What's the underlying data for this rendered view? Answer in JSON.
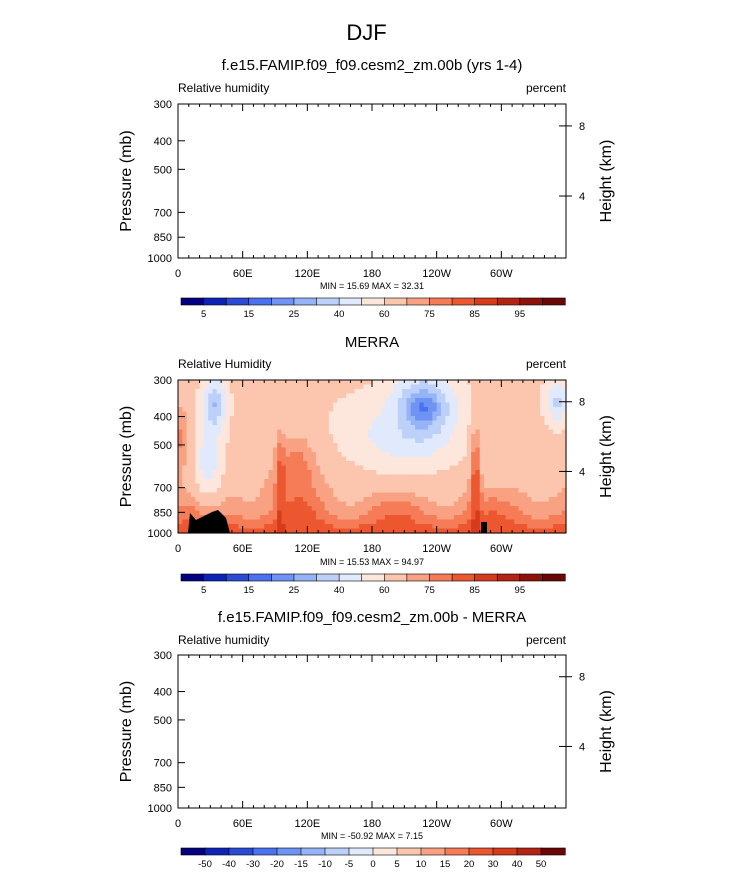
{
  "page": {
    "title": "DJF"
  },
  "colors": {
    "bar_rh": [
      "#04007f",
      "#0b24b6",
      "#2b4ad6",
      "#4a72f0",
      "#6f93f5",
      "#95b3f7",
      "#bcd0f9",
      "#e0eafc",
      "#fde7dc",
      "#fbc6ad",
      "#f9a283",
      "#f57c57",
      "#ec5730",
      "#d53b1c",
      "#b32413",
      "#8e120c",
      "#690606"
    ],
    "topo": "#000000"
  },
  "chart_data": [
    {
      "type": "heatmap",
      "title": "f.e15.FAMIP.f09_f09.cesm2_zm.00b (yrs 1-4)",
      "left_label": "Relative humidity",
      "right_label": "percent",
      "ylabel": "Pressure (mb)",
      "ylabel_right": "Height (km)",
      "y_ticks": [
        "300",
        "400",
        "500",
        "700",
        "850",
        "1000"
      ],
      "y_right_ticks": [
        "8",
        "4"
      ],
      "x_ticks": [
        "0",
        "60E",
        "120E",
        "180",
        "120W",
        "60W"
      ],
      "stats": "MIN = 15.69  MAX = 32.31",
      "colorbar_labels": [
        "5",
        "15",
        "25",
        "40",
        "60",
        "75",
        "85",
        "95"
      ],
      "filled": false
    },
    {
      "type": "heatmap",
      "title": "MERRA",
      "left_label": "Relative Humidity",
      "right_label": "percent",
      "ylabel": "Pressure (mb)",
      "ylabel_right": "Height (km)",
      "y_ticks": [
        "300",
        "400",
        "500",
        "700",
        "850",
        "1000"
      ],
      "y_right_ticks": [
        "8",
        "4"
      ],
      "x_ticks": [
        "0",
        "60E",
        "120E",
        "180",
        "120W",
        "60W"
      ],
      "stats": "MIN = 15.53  MAX = 94.97",
      "colorbar_labels": [
        "5",
        "15",
        "25",
        "40",
        "60",
        "75",
        "85",
        "95"
      ],
      "filled": true
    },
    {
      "type": "heatmap",
      "title": "f.e15.FAMIP.f09_f09.cesm2_zm.00b - MERRA",
      "left_label": "Relative humidity",
      "right_label": "percent",
      "ylabel": "Pressure (mb)",
      "ylabel_right": "Height (km)",
      "y_ticks": [
        "300",
        "400",
        "500",
        "700",
        "850",
        "1000"
      ],
      "y_right_ticks": [
        "8",
        "4"
      ],
      "x_ticks": [
        "0",
        "60E",
        "120E",
        "180",
        "120W",
        "60W"
      ],
      "stats": "MIN = -50.92  MAX =  7.15",
      "colorbar_labels": [
        "-50",
        "-40",
        "-30",
        "-20",
        "-15",
        "-10",
        "-5",
        "0",
        "5",
        "10",
        "15",
        "20",
        "30",
        "40",
        "50"
      ],
      "filled": false
    }
  ]
}
